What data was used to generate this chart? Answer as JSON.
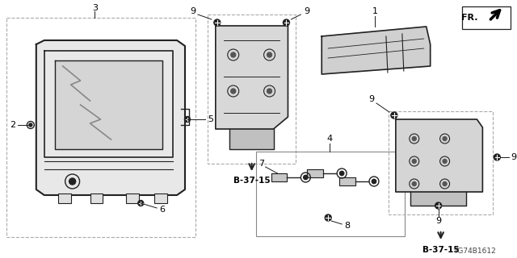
{
  "bg_color": "#ffffff",
  "line_color": "#1a1a1a",
  "dark_color": "#222222",
  "gray_color": "#666666",
  "light_gray": "#aaaaaa",
  "watermark": "TG74B1612",
  "fr_label": "FR.",
  "b37_15": "B-37-15"
}
